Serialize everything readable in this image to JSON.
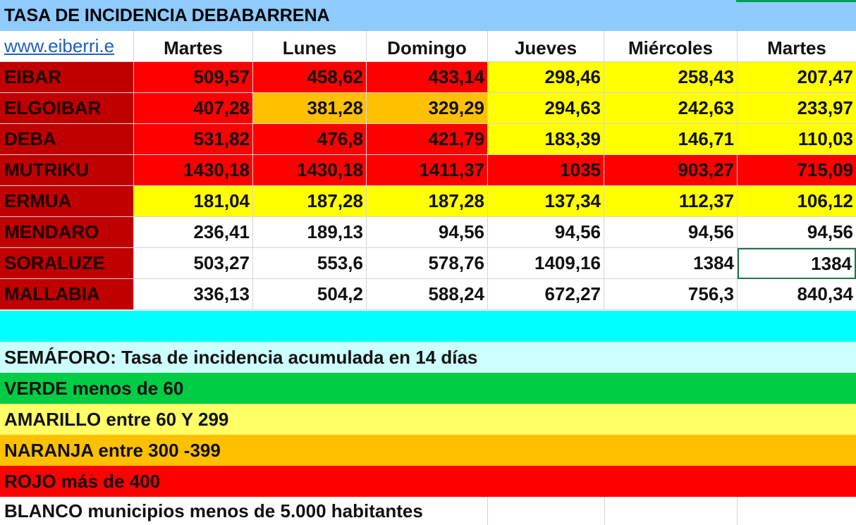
{
  "title": "TASA DE INCIDENCIA DEBABARRENA",
  "link_text": "www.eiberri.e",
  "days": [
    "Martes",
    "Lunes",
    "Domingo",
    "Jueves",
    "Miércoles",
    "Martes"
  ],
  "colors": {
    "rojo": "#ff0000",
    "naranja": "#ffc000",
    "amarillo": "#ffff00",
    "blanco": "#ffffff",
    "name_bg": "#c00000"
  },
  "rows": [
    {
      "name": "EIBAR",
      "values": [
        "509,57",
        "458,62",
        "433,14",
        "298,46",
        "258,43",
        "207,47"
      ],
      "colors": [
        "rojo",
        "rojo",
        "rojo",
        "amarillo",
        "amarillo",
        "amarillo"
      ]
    },
    {
      "name": "ELGOIBAR",
      "values": [
        "407,28",
        "381,28",
        "329,29",
        "294,63",
        "242,63",
        "233,97"
      ],
      "colors": [
        "rojo",
        "naranja",
        "naranja",
        "amarillo",
        "amarillo",
        "amarillo"
      ]
    },
    {
      "name": "DEBA",
      "values": [
        "531,82",
        "476,8",
        "421,79",
        "183,39",
        "146,71",
        "110,03"
      ],
      "colors": [
        "rojo",
        "rojo",
        "rojo",
        "amarillo",
        "amarillo",
        "amarillo"
      ]
    },
    {
      "name": "MUTRIKU",
      "values": [
        "1430,18",
        "1430,18",
        "1411,37",
        "1035",
        "903,27",
        "715,09"
      ],
      "colors": [
        "rojo",
        "rojo",
        "rojo",
        "rojo",
        "rojo",
        "rojo"
      ]
    },
    {
      "name": "ERMUA",
      "values": [
        "181,04",
        "187,28",
        "187,28",
        "137,34",
        "112,37",
        "106,12"
      ],
      "colors": [
        "amarillo",
        "amarillo",
        "amarillo",
        "amarillo",
        "amarillo",
        "amarillo"
      ]
    },
    {
      "name": "MENDARO",
      "values": [
        "236,41",
        "189,13",
        "94,56",
        "94,56",
        "94,56",
        "94,56"
      ],
      "colors": [
        "blanco",
        "blanco",
        "blanco",
        "blanco",
        "blanco",
        "blanco"
      ]
    },
    {
      "name": "SORALUZE",
      "values": [
        "503,27",
        "553,6",
        "578,76",
        "1409,16",
        "1384",
        "1384"
      ],
      "colors": [
        "blanco",
        "blanco",
        "blanco",
        "blanco",
        "blanco",
        "blanco"
      ]
    },
    {
      "name": "MALLABIA",
      "values": [
        "336,13",
        "504,2",
        "588,24",
        "672,27",
        "756,3",
        "840,34"
      ],
      "colors": [
        "blanco",
        "blanco",
        "blanco",
        "blanco",
        "blanco",
        "blanco"
      ]
    }
  ],
  "legend": {
    "semaforo": "SEMÁFORO:  Tasa de incidencia acumulada en 14 días",
    "verde": "VERDE menos de 60",
    "amarillo": "AMARILLO entre 60 Y 299",
    "naranja": "NARANJA entre 300 -399",
    "rojo": "ROJO más de 400",
    "blanco": "BLANCO municipios menos de 5.000 habitantes"
  },
  "legend_colors": {
    "cyan": "#00ffff",
    "semaforo": "#ccffff",
    "verde": "#00cc44",
    "amarillo": "#ffff66",
    "naranja": "#ffc000",
    "rojo": "#ff0000"
  }
}
